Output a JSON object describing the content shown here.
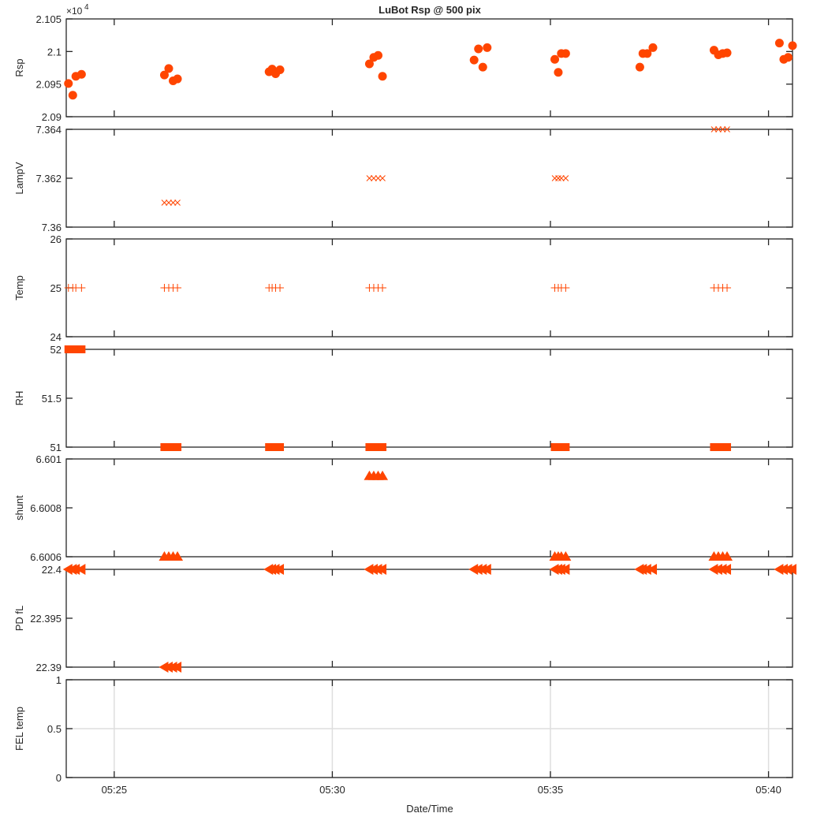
{
  "chart_data": {
    "type": "scatter",
    "title": "LuBot Rsp @ 500 pix",
    "xlabel": "Date/Time",
    "x_tick_labels": [
      "05:25",
      "05:30",
      "05:35",
      "05:40"
    ],
    "x_tick_minutes": [
      25,
      30,
      35,
      40
    ],
    "xlim_minutes": [
      23.9,
      40.55
    ],
    "marker_color": "#ff4500",
    "panels": [
      {
        "ylabel": "Rsp",
        "marker": "circle",
        "ylim": [
          20900,
          21050
        ],
        "y_tick_labels": [
          "2.09",
          "2.095",
          "2.1",
          "2.105"
        ],
        "y_tick_values": [
          20900,
          20950,
          21000,
          21050
        ],
        "exponent_label": "×10",
        "exponent_power": "4",
        "grid": false,
        "points": [
          [
            23.95,
            20951
          ],
          [
            24.05,
            20933
          ],
          [
            24.12,
            20962
          ],
          [
            24.25,
            20965
          ],
          [
            26.15,
            20964
          ],
          [
            26.25,
            20974
          ],
          [
            26.35,
            20955
          ],
          [
            26.45,
            20958
          ],
          [
            28.55,
            20969
          ],
          [
            28.62,
            20973
          ],
          [
            28.7,
            20966
          ],
          [
            28.8,
            20972
          ],
          [
            30.85,
            20981
          ],
          [
            30.95,
            20991
          ],
          [
            31.05,
            20994
          ],
          [
            31.15,
            20962
          ],
          [
            33.25,
            20987
          ],
          [
            33.35,
            21004
          ],
          [
            33.45,
            20976
          ],
          [
            33.55,
            21006
          ],
          [
            35.1,
            20988
          ],
          [
            35.18,
            20968
          ],
          [
            35.25,
            20997
          ],
          [
            35.35,
            20997
          ],
          [
            37.05,
            20976
          ],
          [
            37.12,
            20997
          ],
          [
            37.22,
            20997
          ],
          [
            37.35,
            21006
          ],
          [
            38.75,
            21002
          ],
          [
            38.85,
            20995
          ],
          [
            38.95,
            20997
          ],
          [
            39.05,
            20998
          ],
          [
            40.25,
            21013
          ],
          [
            40.35,
            20988
          ],
          [
            40.45,
            20991
          ],
          [
            40.55,
            21009
          ]
        ]
      },
      {
        "ylabel": "LampV",
        "marker": "x",
        "ylim": [
          7.36,
          7.364
        ],
        "y_tick_labels": [
          "7.36",
          "7.362",
          "7.364"
        ],
        "y_tick_values": [
          7.36,
          7.362,
          7.364
        ],
        "grid": false,
        "points": [
          [
            26.15,
            7.361
          ],
          [
            26.25,
            7.361
          ],
          [
            26.35,
            7.361
          ],
          [
            26.45,
            7.361
          ],
          [
            30.85,
            7.362
          ],
          [
            30.95,
            7.362
          ],
          [
            31.05,
            7.362
          ],
          [
            31.15,
            7.362
          ],
          [
            35.1,
            7.362
          ],
          [
            35.18,
            7.362
          ],
          [
            35.25,
            7.362
          ],
          [
            35.35,
            7.362
          ],
          [
            38.75,
            7.364
          ],
          [
            38.85,
            7.364
          ],
          [
            38.95,
            7.364
          ],
          [
            39.05,
            7.364
          ]
        ]
      },
      {
        "ylabel": "Temp",
        "marker": "plus",
        "ylim": [
          24,
          26
        ],
        "y_tick_labels": [
          "24",
          "25",
          "26"
        ],
        "y_tick_values": [
          24,
          25,
          26
        ],
        "grid": false,
        "points": [
          [
            23.95,
            25
          ],
          [
            24.05,
            25
          ],
          [
            24.12,
            25
          ],
          [
            24.25,
            25
          ],
          [
            26.15,
            25
          ],
          [
            26.25,
            25
          ],
          [
            26.35,
            25
          ],
          [
            26.45,
            25
          ],
          [
            28.55,
            25
          ],
          [
            28.62,
            25
          ],
          [
            28.7,
            25
          ],
          [
            28.8,
            25
          ],
          [
            30.85,
            25
          ],
          [
            30.95,
            25
          ],
          [
            31.05,
            25
          ],
          [
            31.15,
            25
          ],
          [
            35.1,
            25
          ],
          [
            35.18,
            25
          ],
          [
            35.25,
            25
          ],
          [
            35.35,
            25
          ],
          [
            38.75,
            25
          ],
          [
            38.85,
            25
          ],
          [
            38.95,
            25
          ],
          [
            39.05,
            25
          ]
        ]
      },
      {
        "ylabel": "RH",
        "marker": "square",
        "ylim": [
          51,
          52
        ],
        "y_tick_labels": [
          "51",
          "51.5",
          "52"
        ],
        "y_tick_values": [
          51,
          51.5,
          52
        ],
        "grid": false,
        "points": [
          [
            23.95,
            52
          ],
          [
            24.05,
            52
          ],
          [
            24.12,
            52
          ],
          [
            24.25,
            52
          ],
          [
            26.15,
            51
          ],
          [
            26.25,
            51
          ],
          [
            26.35,
            51
          ],
          [
            26.45,
            51
          ],
          [
            28.55,
            51
          ],
          [
            28.62,
            51
          ],
          [
            28.7,
            51
          ],
          [
            28.8,
            51
          ],
          [
            30.85,
            51
          ],
          [
            30.95,
            51
          ],
          [
            31.05,
            51
          ],
          [
            31.15,
            51
          ],
          [
            35.1,
            51
          ],
          [
            35.18,
            51
          ],
          [
            35.25,
            51
          ],
          [
            35.35,
            51
          ],
          [
            38.75,
            51
          ],
          [
            38.85,
            51
          ],
          [
            38.95,
            51
          ],
          [
            39.05,
            51
          ]
        ]
      },
      {
        "ylabel": "shunt",
        "marker": "triangle-up",
        "ylim": [
          6.6006,
          6.601
        ],
        "y_tick_labels": [
          "6.6006",
          "6.6008",
          "6.601"
        ],
        "y_tick_values": [
          6.6006,
          6.6008,
          6.601
        ],
        "grid": false,
        "points": [
          [
            26.15,
            6.6006
          ],
          [
            26.25,
            6.6006
          ],
          [
            26.35,
            6.6006
          ],
          [
            26.45,
            6.6006
          ],
          [
            30.85,
            6.60093
          ],
          [
            30.95,
            6.60093
          ],
          [
            31.05,
            6.60093
          ],
          [
            31.15,
            6.60093
          ],
          [
            35.1,
            6.6006
          ],
          [
            35.18,
            6.6006
          ],
          [
            35.25,
            6.6006
          ],
          [
            35.35,
            6.6006
          ],
          [
            38.75,
            6.6006
          ],
          [
            38.85,
            6.6006
          ],
          [
            38.95,
            6.6006
          ],
          [
            39.05,
            6.6006
          ]
        ]
      },
      {
        "ylabel": "PD fL",
        "marker": "triangle-left",
        "ylim": [
          22.39,
          22.4
        ],
        "y_tick_labels": [
          "22.39",
          "22.395",
          "22.4"
        ],
        "y_tick_values": [
          22.39,
          22.395,
          22.4
        ],
        "grid": false,
        "points": [
          [
            23.95,
            22.4
          ],
          [
            24.05,
            22.4
          ],
          [
            24.12,
            22.4
          ],
          [
            24.25,
            22.4
          ],
          [
            26.15,
            22.39
          ],
          [
            26.25,
            22.39
          ],
          [
            26.35,
            22.39
          ],
          [
            26.45,
            22.39
          ],
          [
            28.55,
            22.4
          ],
          [
            28.62,
            22.4
          ],
          [
            28.7,
            22.4
          ],
          [
            28.8,
            22.4
          ],
          [
            30.85,
            22.4
          ],
          [
            30.95,
            22.4
          ],
          [
            31.05,
            22.4
          ],
          [
            31.15,
            22.4
          ],
          [
            33.25,
            22.4
          ],
          [
            33.35,
            22.4
          ],
          [
            33.45,
            22.4
          ],
          [
            33.55,
            22.4
          ],
          [
            35.1,
            22.4
          ],
          [
            35.18,
            22.4
          ],
          [
            35.25,
            22.4
          ],
          [
            35.35,
            22.4
          ],
          [
            37.05,
            22.4
          ],
          [
            37.12,
            22.4
          ],
          [
            37.22,
            22.4
          ],
          [
            37.35,
            22.4
          ],
          [
            38.75,
            22.4
          ],
          [
            38.85,
            22.4
          ],
          [
            38.95,
            22.4
          ],
          [
            39.05,
            22.4
          ],
          [
            40.25,
            22.4
          ],
          [
            40.35,
            22.4
          ],
          [
            40.45,
            22.4
          ],
          [
            40.55,
            22.4
          ]
        ]
      },
      {
        "ylabel": "FEL temp",
        "marker": "none",
        "ylim": [
          0,
          1
        ],
        "y_tick_labels": [
          "0",
          "0.5",
          "1"
        ],
        "y_tick_values": [
          0,
          0.5,
          1
        ],
        "grid": true,
        "points": []
      }
    ]
  }
}
